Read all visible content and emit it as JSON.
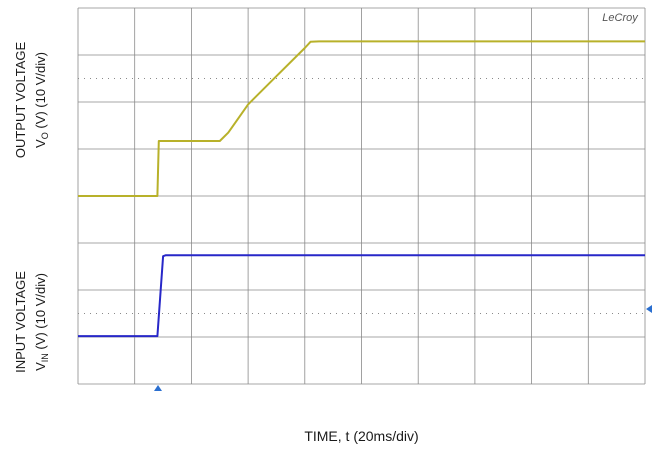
{
  "brand": "LeCroy",
  "xlabel": "TIME, t (20ms/div)",
  "top_label": {
    "line1": "OUTPUT VOLTAGE",
    "line2_prefix": "V",
    "line2_sub": "O",
    "line2_rest": " (V) (10 V/div)"
  },
  "bottom_label": {
    "line1": "INPUT VOLTAGE",
    "line2_prefix": "V",
    "line2_sub": "IN",
    "line2_rest": " (V) (10 V/div)"
  },
  "colors": {
    "output": "#b8b12a",
    "input": "#2727c8",
    "grid": "#8a8a8a",
    "marker": "#2a6fd0"
  },
  "chart_data": {
    "type": "line",
    "title": "",
    "xlabel": "TIME, t (20ms/div)",
    "grid": true,
    "xlim": [
      0,
      200
    ],
    "series": [
      {
        "name": "",
        "panel": "top",
        "ylim": [
          0,
          40
        ],
        "x": [
          0,
          28,
          28.5,
          50,
          53,
          60,
          70,
          80,
          82,
          85,
          200
        ],
        "y": [
          0,
          0,
          11.7,
          11.7,
          13.5,
          19.5,
          25.5,
          31.5,
          32.8,
          32.9,
          32.9
        ]
      },
      {
        "name": "",
        "panel": "bottom",
        "ylim": [
          -20,
          20
        ],
        "x": [
          0,
          28,
          30,
          31,
          200
        ],
        "y": [
          -9.8,
          -9.8,
          7.2,
          7.4,
          7.4
        ]
      }
    ]
  }
}
